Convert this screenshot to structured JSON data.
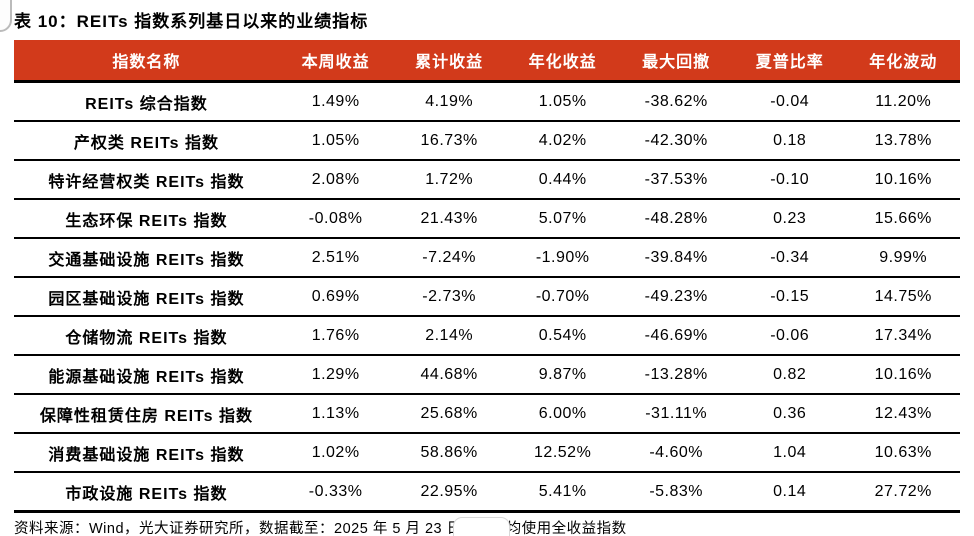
{
  "title": "表 10：REITs 指数系列基日以来的业绩指标",
  "table": {
    "headers": [
      "指数名称",
      "本周收益",
      "累计收益",
      "年化收益",
      "最大回撤",
      "夏普比率",
      "年化波动"
    ],
    "rows": [
      {
        "name": "REITs 综合指数",
        "values": [
          "1.49%",
          "4.19%",
          "1.05%",
          "-38.62%",
          "-0.04",
          "11.20%"
        ]
      },
      {
        "name": "产权类 REITs 指数",
        "values": [
          "1.05%",
          "16.73%",
          "4.02%",
          "-42.30%",
          "0.18",
          "13.78%"
        ]
      },
      {
        "name": "特许经营权类 REITs 指数",
        "values": [
          "2.08%",
          "1.72%",
          "0.44%",
          "-37.53%",
          "-0.10",
          "10.16%"
        ]
      },
      {
        "name": "生态环保 REITs 指数",
        "values": [
          "-0.08%",
          "21.43%",
          "5.07%",
          "-48.28%",
          "0.23",
          "15.66%"
        ]
      },
      {
        "name": "交通基础设施 REITs 指数",
        "values": [
          "2.51%",
          "-7.24%",
          "-1.90%",
          "-39.84%",
          "-0.34",
          "9.99%"
        ]
      },
      {
        "name": "园区基础设施 REITs 指数",
        "values": [
          "0.69%",
          "-2.73%",
          "-0.70%",
          "-49.23%",
          "-0.15",
          "14.75%"
        ]
      },
      {
        "name": "仓储物流 REITs 指数",
        "values": [
          "1.76%",
          "2.14%",
          "0.54%",
          "-46.69%",
          "-0.06",
          "17.34%"
        ]
      },
      {
        "name": "能源基础设施 REITs 指数",
        "values": [
          "1.29%",
          "44.68%",
          "9.87%",
          "-13.28%",
          "0.82",
          "10.16%"
        ]
      },
      {
        "name": "保障性租赁住房 REITs 指数",
        "values": [
          "1.13%",
          "25.68%",
          "6.00%",
          "-31.11%",
          "0.36",
          "12.43%"
        ]
      },
      {
        "name": "消费基础设施 REITs 指数",
        "values": [
          "1.02%",
          "58.86%",
          "12.52%",
          "-4.60%",
          "1.04",
          "10.63%"
        ]
      },
      {
        "name": "市政设施 REITs 指数",
        "values": [
          "-0.33%",
          "22.95%",
          "5.41%",
          "-5.83%",
          "0.14",
          "27.72%"
        ]
      }
    ]
  },
  "footer": "资料来源：Wind，光大证券研究所，数据截至：2025 年 5 月 23 日；注：均使用全收益指数",
  "colors": {
    "header_bg": "#D23A1B",
    "header_text": "#FFFFFF",
    "border": "#000000"
  }
}
